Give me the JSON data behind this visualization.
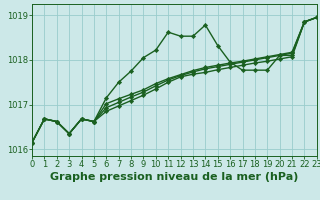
{
  "title": "Graphe pression niveau de la mer (hPa)",
  "bg_color": "#cce8e8",
  "grid_color": "#99cccc",
  "line_color": "#1a6020",
  "xlim": [
    0,
    23
  ],
  "ylim": [
    1015.85,
    1019.25
  ],
  "yticks": [
    1016,
    1017,
    1018,
    1019
  ],
  "xticks": [
    0,
    1,
    2,
    3,
    4,
    5,
    6,
    7,
    8,
    9,
    10,
    11,
    12,
    13,
    14,
    15,
    16,
    17,
    18,
    19,
    20,
    21,
    22,
    23
  ],
  "series": [
    [
      1016.15,
      1016.68,
      1016.62,
      1016.35,
      1016.68,
      1016.62,
      1017.15,
      1017.5,
      1017.75,
      1018.05,
      1018.22,
      1018.62,
      1018.53,
      1018.53,
      1018.78,
      1018.32,
      1017.95,
      1017.77,
      1017.77,
      1017.77,
      1018.1,
      1018.1,
      1018.85,
      1018.95
    ],
    [
      1016.15,
      1016.68,
      1016.62,
      1016.35,
      1016.68,
      1016.62,
      1016.85,
      1016.97,
      1017.09,
      1017.21,
      1017.35,
      1017.5,
      1017.62,
      1017.68,
      1017.72,
      1017.78,
      1017.83,
      1017.88,
      1017.93,
      1017.97,
      1018.02,
      1018.07,
      1018.85,
      1018.95
    ],
    [
      1016.15,
      1016.68,
      1016.62,
      1016.35,
      1016.68,
      1016.62,
      1016.93,
      1017.05,
      1017.17,
      1017.28,
      1017.42,
      1017.55,
      1017.65,
      1017.73,
      1017.8,
      1017.85,
      1017.9,
      1017.95,
      1018.0,
      1018.05,
      1018.1,
      1018.15,
      1018.85,
      1018.95
    ],
    [
      1016.15,
      1016.68,
      1016.62,
      1016.35,
      1016.68,
      1016.62,
      1017.02,
      1017.13,
      1017.23,
      1017.33,
      1017.47,
      1017.58,
      1017.67,
      1017.76,
      1017.83,
      1017.88,
      1017.93,
      1017.97,
      1018.02,
      1018.07,
      1018.12,
      1018.17,
      1018.85,
      1018.95
    ]
  ],
  "title_fontsize": 8,
  "tick_fontsize": 6,
  "lw": 1.0,
  "markersize": 2.2
}
